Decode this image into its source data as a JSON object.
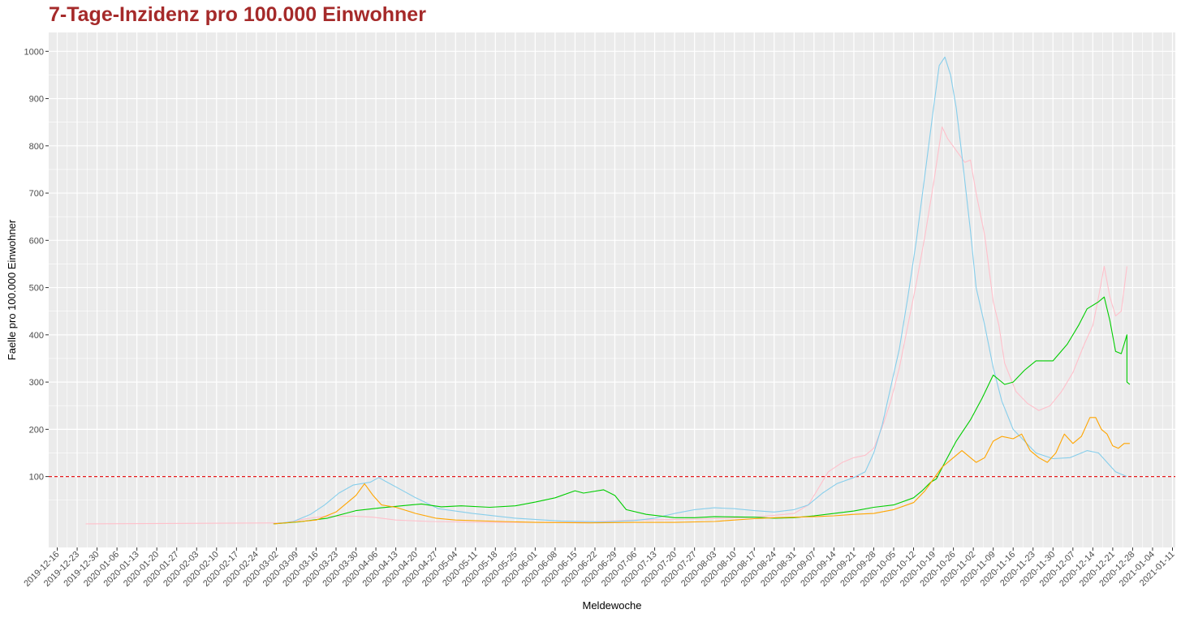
{
  "chart_data": {
    "type": "line",
    "title": "7-Tage-Inzidenz pro 100.000 Einwohner",
    "xlabel": "Meldewoche",
    "ylabel": "Faelle pro 100.000 Einwohner",
    "ylim": [
      -50,
      1040
    ],
    "y_ticks": [
      100,
      200,
      300,
      400,
      500,
      600,
      700,
      800,
      900,
      1000
    ],
    "x_range": [
      "2019-12-13",
      "2021-01-12"
    ],
    "x_ticks": [
      "2019-12-16",
      "2019-12-23",
      "2019-12-30",
      "2020-01-06",
      "2020-01-13",
      "2020-01-20",
      "2020-01-27",
      "2020-02-03",
      "2020-02-10",
      "2020-02-17",
      "2020-02-24",
      "2020-03-02",
      "2020-03-09",
      "2020-03-16",
      "2020-03-23",
      "2020-03-30",
      "2020-04-06",
      "2020-04-13",
      "2020-04-20",
      "2020-04-27",
      "2020-05-04",
      "2020-05-11",
      "2020-05-18",
      "2020-05-25",
      "2020-06-01",
      "2020-06-08",
      "2020-06-15",
      "2020-06-22",
      "2020-06-29",
      "2020-07-06",
      "2020-07-13",
      "2020-07-20",
      "2020-07-27",
      "2020-08-03",
      "2020-08-10",
      "2020-08-17",
      "2020-08-24",
      "2020-08-31",
      "2020-09-07",
      "2020-09-14",
      "2020-09-21",
      "2020-09-28",
      "2020-10-05",
      "2020-10-12",
      "2020-10-19",
      "2020-10-26",
      "2020-11-02",
      "2020-11-09",
      "2020-11-16",
      "2020-11-23",
      "2020-11-30",
      "2020-12-07",
      "2020-12-14",
      "2020-12-21",
      "2020-12-28",
      "2021-01-04",
      "2021-01-11"
    ],
    "grid": true,
    "background": "#ebebeb",
    "reference_line": {
      "y": 100,
      "color": "#e41a1c",
      "style": "dashed"
    },
    "series": [
      {
        "color": "#ffc0cb",
        "points": [
          [
            "2019-12-26",
            0
          ],
          [
            "2020-03-05",
            2
          ],
          [
            "2020-03-10",
            8
          ],
          [
            "2020-03-15",
            13
          ],
          [
            "2020-03-20",
            16
          ],
          [
            "2020-03-25",
            16
          ],
          [
            "2020-03-30",
            16
          ],
          [
            "2020-04-05",
            14
          ],
          [
            "2020-04-13",
            8
          ],
          [
            "2020-04-25",
            5
          ],
          [
            "2020-05-15",
            3
          ],
          [
            "2020-06-15",
            3
          ],
          [
            "2020-06-28",
            6
          ],
          [
            "2020-07-06",
            8
          ],
          [
            "2020-07-20",
            9
          ],
          [
            "2020-08-03",
            11
          ],
          [
            "2020-08-17",
            14
          ],
          [
            "2020-08-31",
            22
          ],
          [
            "2020-09-05",
            40
          ],
          [
            "2020-09-08",
            70
          ],
          [
            "2020-09-12",
            110
          ],
          [
            "2020-09-17",
            130
          ],
          [
            "2020-09-21",
            140
          ],
          [
            "2020-09-25",
            145
          ],
          [
            "2020-09-28",
            160
          ],
          [
            "2020-10-01",
            205
          ],
          [
            "2020-10-04",
            260
          ],
          [
            "2020-10-07",
            330
          ],
          [
            "2020-10-10",
            420
          ],
          [
            "2020-10-13",
            510
          ],
          [
            "2020-10-16",
            610
          ],
          [
            "2020-10-19",
            720
          ],
          [
            "2020-10-22",
            840
          ],
          [
            "2020-10-24",
            815
          ],
          [
            "2020-10-27",
            790
          ],
          [
            "2020-10-30",
            765
          ],
          [
            "2020-11-01",
            770
          ],
          [
            "2020-11-03",
            700
          ],
          [
            "2020-11-06",
            610
          ],
          [
            "2020-11-09",
            470
          ],
          [
            "2020-11-11",
            420
          ],
          [
            "2020-11-13",
            340
          ],
          [
            "2020-11-17",
            280
          ],
          [
            "2020-11-21",
            255
          ],
          [
            "2020-11-25",
            240
          ],
          [
            "2020-11-29",
            250
          ],
          [
            "2020-12-03",
            280
          ],
          [
            "2020-12-07",
            320
          ],
          [
            "2020-12-11",
            380
          ],
          [
            "2020-12-14",
            420
          ],
          [
            "2020-12-16",
            480
          ],
          [
            "2020-12-18",
            545
          ],
          [
            "2020-12-20",
            480
          ],
          [
            "2020-12-22",
            440
          ],
          [
            "2020-12-24",
            450
          ],
          [
            "2020-12-26",
            545
          ]
        ]
      },
      {
        "color": "#87ceeb",
        "points": [
          [
            "2020-03-01",
            0
          ],
          [
            "2020-03-08",
            5
          ],
          [
            "2020-03-14",
            20
          ],
          [
            "2020-03-19",
            40
          ],
          [
            "2020-03-24",
            65
          ],
          [
            "2020-03-29",
            82
          ],
          [
            "2020-04-04",
            88
          ],
          [
            "2020-04-07",
            98
          ],
          [
            "2020-04-10",
            88
          ],
          [
            "2020-04-14",
            75
          ],
          [
            "2020-04-20",
            55
          ],
          [
            "2020-04-28",
            32
          ],
          [
            "2020-05-10",
            22
          ],
          [
            "2020-05-25",
            12
          ],
          [
            "2020-06-10",
            6
          ],
          [
            "2020-06-25",
            4
          ],
          [
            "2020-07-06",
            7
          ],
          [
            "2020-07-13",
            12
          ],
          [
            "2020-07-20",
            22
          ],
          [
            "2020-07-27",
            30
          ],
          [
            "2020-08-03",
            34
          ],
          [
            "2020-08-10",
            32
          ],
          [
            "2020-08-17",
            28
          ],
          [
            "2020-08-24",
            25
          ],
          [
            "2020-08-31",
            30
          ],
          [
            "2020-09-05",
            40
          ],
          [
            "2020-09-10",
            65
          ],
          [
            "2020-09-15",
            85
          ],
          [
            "2020-09-21",
            98
          ],
          [
            "2020-09-25",
            110
          ],
          [
            "2020-09-28",
            150
          ],
          [
            "2020-10-01",
            210
          ],
          [
            "2020-10-04",
            290
          ],
          [
            "2020-10-07",
            370
          ],
          [
            "2020-10-10",
            480
          ],
          [
            "2020-10-13",
            600
          ],
          [
            "2020-10-16",
            740
          ],
          [
            "2020-10-19",
            880
          ],
          [
            "2020-10-21",
            970
          ],
          [
            "2020-10-23",
            988
          ],
          [
            "2020-10-25",
            950
          ],
          [
            "2020-10-27",
            880
          ],
          [
            "2020-10-29",
            780
          ],
          [
            "2020-11-01",
            620
          ],
          [
            "2020-11-03",
            500
          ],
          [
            "2020-11-06",
            420
          ],
          [
            "2020-11-09",
            330
          ],
          [
            "2020-11-12",
            260
          ],
          [
            "2020-11-16",
            200
          ],
          [
            "2020-11-20",
            175
          ],
          [
            "2020-11-24",
            150
          ],
          [
            "2020-11-30",
            138
          ],
          [
            "2020-12-06",
            140
          ],
          [
            "2020-12-12",
            155
          ],
          [
            "2020-12-16",
            150
          ],
          [
            "2020-12-19",
            130
          ],
          [
            "2020-12-22",
            110
          ],
          [
            "2020-12-26",
            100
          ]
        ]
      },
      {
        "color": "#00cd00",
        "points": [
          [
            "2020-03-01",
            0
          ],
          [
            "2020-03-10",
            4
          ],
          [
            "2020-03-20",
            12
          ],
          [
            "2020-03-30",
            28
          ],
          [
            "2020-04-08",
            34
          ],
          [
            "2020-04-15",
            38
          ],
          [
            "2020-04-22",
            42
          ],
          [
            "2020-04-29",
            36
          ],
          [
            "2020-05-06",
            38
          ],
          [
            "2020-05-16",
            35
          ],
          [
            "2020-05-25",
            38
          ],
          [
            "2020-06-01",
            46
          ],
          [
            "2020-06-08",
            55
          ],
          [
            "2020-06-15",
            70
          ],
          [
            "2020-06-18",
            65
          ],
          [
            "2020-06-25",
            72
          ],
          [
            "2020-06-29",
            60
          ],
          [
            "2020-07-03",
            30
          ],
          [
            "2020-07-10",
            20
          ],
          [
            "2020-07-20",
            13
          ],
          [
            "2020-07-27",
            13
          ],
          [
            "2020-08-03",
            15
          ],
          [
            "2020-08-17",
            14
          ],
          [
            "2020-08-24",
            12
          ],
          [
            "2020-08-31",
            13
          ],
          [
            "2020-09-07",
            17
          ],
          [
            "2020-09-14",
            22
          ],
          [
            "2020-09-21",
            27
          ],
          [
            "2020-09-28",
            35
          ],
          [
            "2020-10-05",
            40
          ],
          [
            "2020-10-12",
            55
          ],
          [
            "2020-10-15",
            70
          ],
          [
            "2020-10-18",
            88
          ],
          [
            "2020-10-20",
            95
          ],
          [
            "2020-10-23",
            130
          ],
          [
            "2020-10-27",
            175
          ],
          [
            "2020-11-01",
            220
          ],
          [
            "2020-11-05",
            265
          ],
          [
            "2020-11-09",
            315
          ],
          [
            "2020-11-13",
            295
          ],
          [
            "2020-11-16",
            300
          ],
          [
            "2020-11-20",
            325
          ],
          [
            "2020-11-24",
            345
          ],
          [
            "2020-11-30",
            345
          ],
          [
            "2020-12-05",
            380
          ],
          [
            "2020-12-09",
            420
          ],
          [
            "2020-12-12",
            455
          ],
          [
            "2020-12-16",
            470
          ],
          [
            "2020-12-18",
            480
          ],
          [
            "2020-12-20",
            430
          ],
          [
            "2020-12-22",
            365
          ],
          [
            "2020-12-24",
            360
          ],
          [
            "2020-12-26",
            400
          ],
          [
            "2020-12-26",
            300
          ],
          [
            "2020-12-27",
            295
          ]
        ]
      },
      {
        "color": "#ffa500",
        "points": [
          [
            "2020-03-01",
            0
          ],
          [
            "2020-03-09",
            4
          ],
          [
            "2020-03-16",
            8
          ],
          [
            "2020-03-23",
            25
          ],
          [
            "2020-03-30",
            60
          ],
          [
            "2020-04-02",
            85
          ],
          [
            "2020-04-05",
            60
          ],
          [
            "2020-04-08",
            40
          ],
          [
            "2020-04-13",
            35
          ],
          [
            "2020-04-20",
            22
          ],
          [
            "2020-04-27",
            12
          ],
          [
            "2020-05-04",
            8
          ],
          [
            "2020-05-20",
            5
          ],
          [
            "2020-06-01",
            3
          ],
          [
            "2020-06-20",
            2
          ],
          [
            "2020-07-06",
            3
          ],
          [
            "2020-07-20",
            3
          ],
          [
            "2020-08-03",
            5
          ],
          [
            "2020-08-10",
            8
          ],
          [
            "2020-08-17",
            11
          ],
          [
            "2020-08-24",
            13
          ],
          [
            "2020-08-31",
            14
          ],
          [
            "2020-09-07",
            15
          ],
          [
            "2020-09-14",
            17
          ],
          [
            "2020-09-21",
            20
          ],
          [
            "2020-09-28",
            22
          ],
          [
            "2020-10-05",
            30
          ],
          [
            "2020-10-12",
            45
          ],
          [
            "2020-10-16",
            70
          ],
          [
            "2020-10-19",
            95
          ],
          [
            "2020-10-22",
            120
          ],
          [
            "2020-10-26",
            140
          ],
          [
            "2020-10-29",
            155
          ],
          [
            "2020-11-01",
            140
          ],
          [
            "2020-11-03",
            130
          ],
          [
            "2020-11-06",
            140
          ],
          [
            "2020-11-09",
            175
          ],
          [
            "2020-11-12",
            185
          ],
          [
            "2020-11-16",
            180
          ],
          [
            "2020-11-19",
            190
          ],
          [
            "2020-11-22",
            155
          ],
          [
            "2020-11-25",
            140
          ],
          [
            "2020-11-28",
            130
          ],
          [
            "2020-12-01",
            150
          ],
          [
            "2020-12-04",
            190
          ],
          [
            "2020-12-07",
            170
          ],
          [
            "2020-12-10",
            185
          ],
          [
            "2020-12-13",
            225
          ],
          [
            "2020-12-15",
            225
          ],
          [
            "2020-12-17",
            200
          ],
          [
            "2020-12-19",
            190
          ],
          [
            "2020-12-21",
            165
          ],
          [
            "2020-12-23",
            160
          ],
          [
            "2020-12-25",
            170
          ],
          [
            "2020-12-27",
            170
          ]
        ]
      }
    ]
  }
}
